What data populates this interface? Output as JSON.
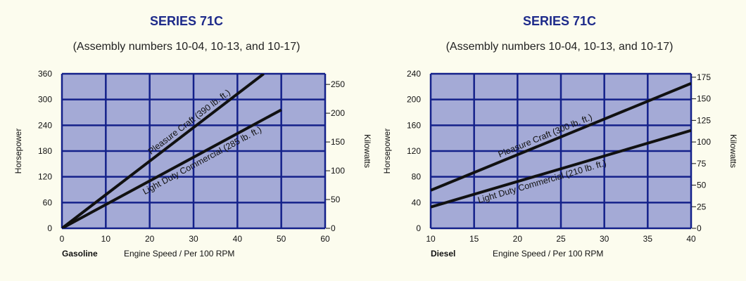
{
  "chart_data": [
    {
      "type": "line",
      "title": "SERIES 71C",
      "subtitle": "(Assembly numbers 10-04, 10-13, and 10-17)",
      "fuel_label": "Gasoline",
      "xlabel": "Engine Speed / Per 100 RPM",
      "ylabel": "Horsepower",
      "ylabel_right": "Kilowatts",
      "xlim": [
        0,
        60
      ],
      "ylim": [
        0,
        360
      ],
      "y2lim": [
        0,
        268.5
      ],
      "x_ticks": [
        0,
        10,
        20,
        30,
        40,
        50,
        60
      ],
      "y_ticks": [
        0,
        60,
        120,
        180,
        240,
        300,
        360
      ],
      "y2_ticks": [
        0,
        50,
        100,
        150,
        200,
        250
      ],
      "grid": true,
      "series": [
        {
          "name": "Pleasure Craft (390 lb. ft.)",
          "x": [
            0,
            46
          ],
          "y": [
            0,
            360
          ]
        },
        {
          "name": "Light Duty Commercial (285 lb. ft.)",
          "x": [
            0,
            50
          ],
          "y": [
            0,
            276
          ]
        }
      ],
      "colors": {
        "plot_bg": "#a4aad6",
        "grid": "#14218a",
        "line": "#111111"
      }
    },
    {
      "type": "line",
      "title": "SERIES 71C",
      "subtitle": "(Assembly numbers 10-04, 10-13, and 10-17)",
      "fuel_label": "Diesel",
      "xlabel": "Engine Speed / Per 100 RPM",
      "ylabel": "Horsepower",
      "ylabel_right": "Kilowatts",
      "xlim": [
        10,
        40
      ],
      "ylim": [
        0,
        240
      ],
      "y2lim": [
        0,
        179
      ],
      "x_ticks": [
        10,
        15,
        20,
        25,
        30,
        35,
        40
      ],
      "y_ticks": [
        0,
        40,
        80,
        120,
        160,
        200,
        240
      ],
      "y2_ticks": [
        0,
        25,
        50,
        75,
        100,
        125,
        150,
        175
      ],
      "grid": true,
      "series": [
        {
          "name": "Pleasure Craft (300 lb. ft.)",
          "x": [
            10,
            40
          ],
          "y": [
            59,
            225
          ]
        },
        {
          "name": "Light Duty Commercial (210 lb. ft.)",
          "x": [
            10,
            40
          ],
          "y": [
            33,
            152
          ]
        }
      ],
      "colors": {
        "plot_bg": "#a4aad6",
        "grid": "#14218a",
        "line": "#111111"
      }
    }
  ]
}
